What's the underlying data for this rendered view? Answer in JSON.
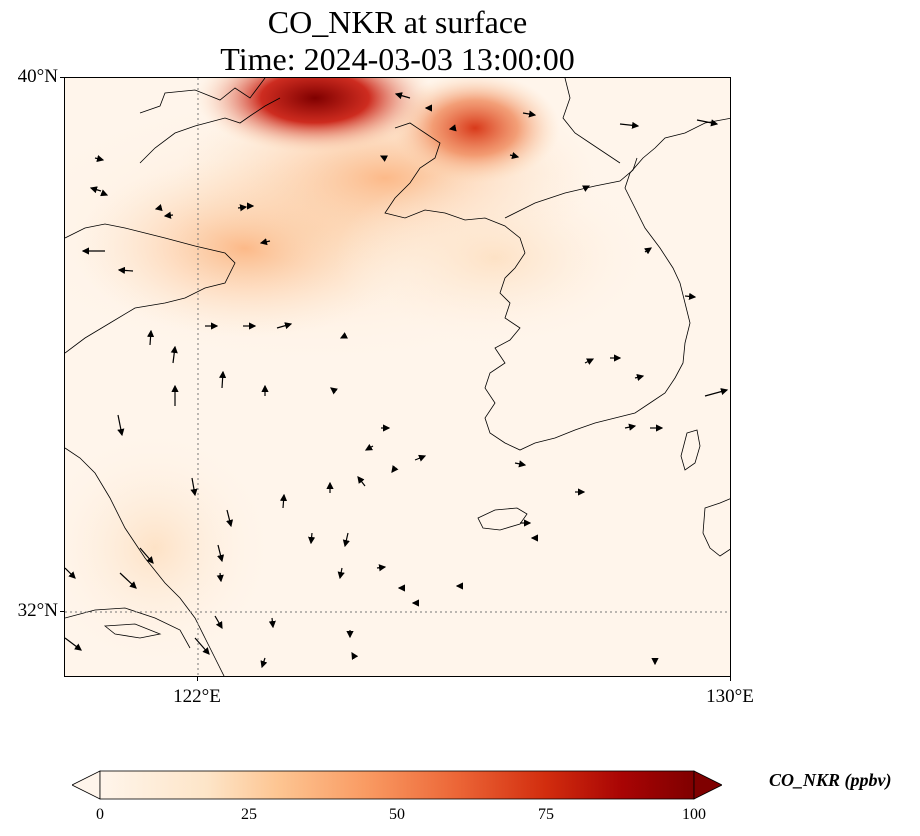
{
  "title": {
    "line1": "CO_NKR at surface",
    "line2": "Time: 2024-03-03 13:00:00"
  },
  "axes": {
    "lat_labels": [
      "40°N",
      "32°N"
    ],
    "lon_labels": [
      "122°E",
      "130°E"
    ],
    "lat_range": [
      31,
      40
    ],
    "lon_range": [
      120,
      130
    ],
    "gridlines": "dotted at 122°E and 32°N"
  },
  "colorbar": {
    "label": "CO_NKR (ppbv)",
    "ticks": [
      "0",
      "25",
      "50",
      "75",
      "100"
    ],
    "range": [
      0,
      100
    ],
    "extend": "both",
    "colormap": [
      "#fff5eb",
      "#fdd9b4",
      "#fdb97d",
      "#f4804d",
      "#e0401e",
      "#b50e04",
      "#7f0000"
    ]
  },
  "map": {
    "type": "concentration field with wind vectors",
    "region": "Yellow Sea / Korean Peninsula",
    "hotspots": [
      {
        "lon": 124.0,
        "lat": 39.7,
        "value": 95
      },
      {
        "lon": 126.2,
        "lat": 39.2,
        "value": 65
      },
      {
        "lon": 123.0,
        "lat": 38.6,
        "value": 35
      },
      {
        "lon": 125.2,
        "lat": 38.4,
        "value": 28
      }
    ],
    "background_value": 5
  }
}
